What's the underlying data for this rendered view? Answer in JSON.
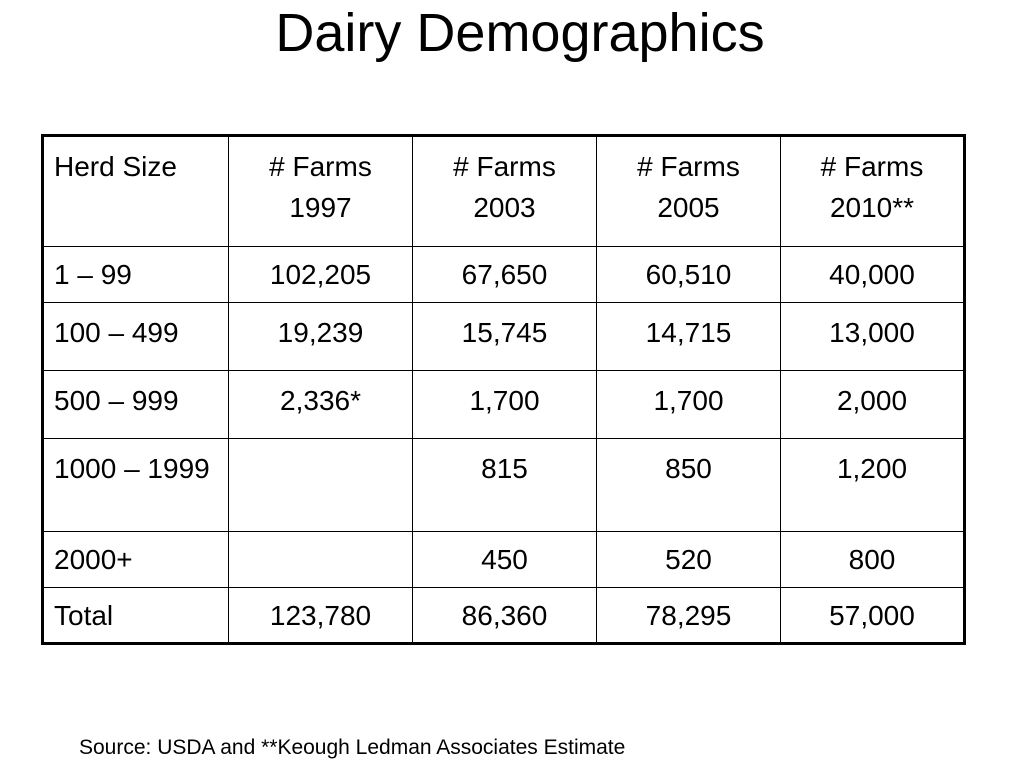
{
  "slide": {
    "title": "Dairy Demographics",
    "source_note": "Source: USDA and **Keough Ledman Associates Estimate"
  },
  "table": {
    "headers": [
      {
        "line1": "Herd Size",
        "line2": ""
      },
      {
        "line1": "# Farms",
        "line2": "1997"
      },
      {
        "line1": "# Farms",
        "line2": "2003"
      },
      {
        "line1": "# Farms",
        "line2": "2005"
      },
      {
        "line1": "# Farms",
        "line2": "2010**"
      }
    ],
    "rows": [
      {
        "herd_size": "1 – 99",
        "f1997": "102,205",
        "f2003": "67,650",
        "f2005": "60,510",
        "f2010": "40,000"
      },
      {
        "herd_size": "100 – 499",
        "f1997": "19,239",
        "f2003": "15,745",
        "f2005": "14,715",
        "f2010": "13,000"
      },
      {
        "herd_size": "500 – 999",
        "f1997": "2,336*",
        "f2003": "1,700",
        "f2005": "1,700",
        "f2010": "2,000"
      },
      {
        "herd_size": "1000 – 1999",
        "f1997": "",
        "f2003": "815",
        "f2005": "850",
        "f2010": "1,200"
      },
      {
        "herd_size": "2000+",
        "f1997": "",
        "f2003": "450",
        "f2005": "520",
        "f2010": "800"
      },
      {
        "herd_size": "Total",
        "f1997": "123,780",
        "f2003": "86,360",
        "f2005": "78,295",
        "f2010": "57,000"
      }
    ]
  }
}
